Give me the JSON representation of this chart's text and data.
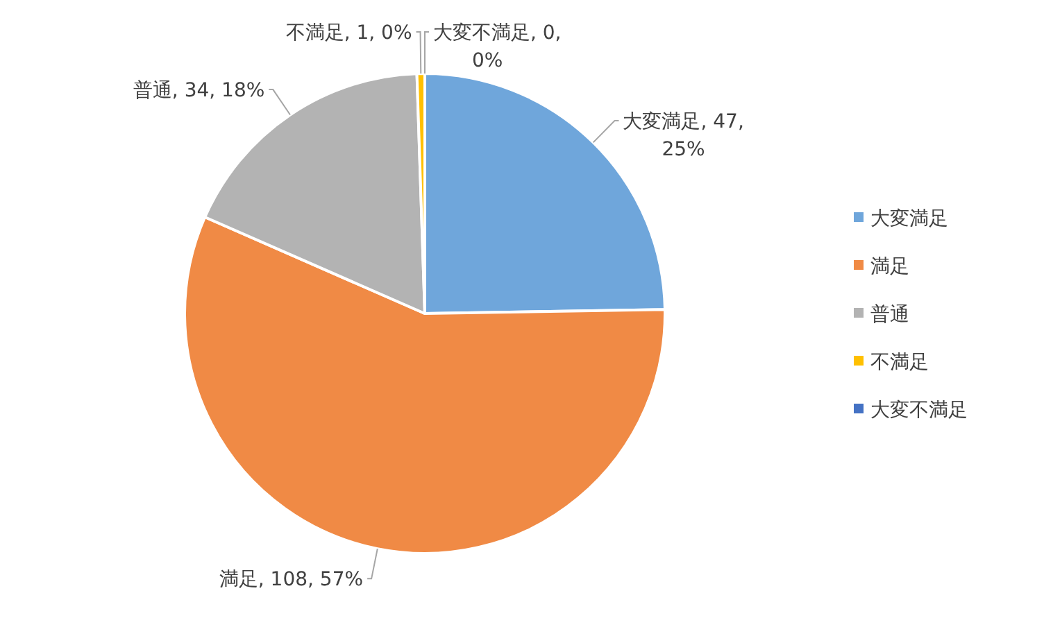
{
  "chart_data": {
    "type": "pie",
    "categories": [
      "大変満足",
      "満足",
      "普通",
      "不満足",
      "大変不満足"
    ],
    "values": [
      47,
      108,
      34,
      1,
      0
    ],
    "colors": [
      "#6fa6db",
      "#f08a45",
      "#b3b3b3",
      "#ffc000",
      "#4472c4"
    ],
    "value_labels": [
      "大変満足, 47, 25%",
      "満足, 108, 57%",
      "普通, 34, 18%",
      "不満足, 1, 0%",
      "大変不満足, 0, 0%"
    ],
    "legend": "right"
  }
}
